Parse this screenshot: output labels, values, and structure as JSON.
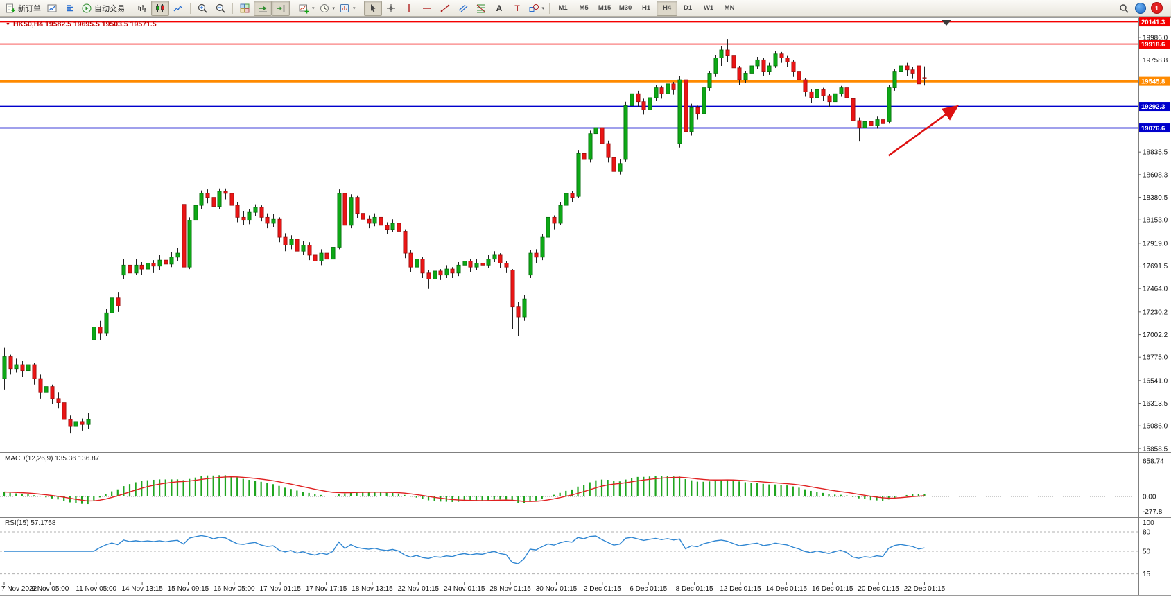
{
  "toolbar": {
    "groups": [
      {
        "name": "trade",
        "items": [
          {
            "name": "new-order",
            "icon": "new-order",
            "label": "新订单"
          },
          {
            "name": "chart-window",
            "icon": "chart-window"
          },
          {
            "name": "market-depth",
            "icon": "market-depth"
          },
          {
            "name": "autotrade",
            "icon": "autotrade",
            "label": "自动交易"
          }
        ]
      },
      {
        "name": "chart-type",
        "items": [
          {
            "name": "bar-chart",
            "icon": "bars"
          },
          {
            "name": "candlestick-chart",
            "icon": "candles",
            "active": true
          },
          {
            "name": "line-chart",
            "icon": "line-chart"
          }
        ]
      },
      {
        "name": "zoom",
        "items": [
          {
            "name": "zoom-in",
            "icon": "zoom-in"
          },
          {
            "name": "zoom-out",
            "icon": "zoom-out"
          }
        ]
      },
      {
        "name": "scroll",
        "items": [
          {
            "name": "tile-windows",
            "icon": "tile-windows"
          },
          {
            "name": "auto-scroll",
            "icon": "auto-scroll",
            "active": true
          },
          {
            "name": "chart-shift",
            "icon": "chart-shift",
            "active": true
          }
        ]
      },
      {
        "name": "objects",
        "items": [
          {
            "name": "new-chart",
            "icon": "new-chart",
            "dropdown": true
          },
          {
            "name": "period",
            "icon": "period",
            "dropdown": true
          },
          {
            "name": "template",
            "icon": "template",
            "dropdown": true
          }
        ]
      },
      {
        "name": "line-studies",
        "items": [
          {
            "name": "cursor",
            "icon": "cursor",
            "active": true
          },
          {
            "name": "crosshair",
            "icon": "crosshair"
          },
          {
            "name": "vertical-line",
            "icon": "vline"
          },
          {
            "name": "horizontal-line",
            "icon": "hline"
          },
          {
            "name": "trendline",
            "icon": "trendline"
          },
          {
            "name": "equidistant-channel",
            "icon": "channel"
          },
          {
            "name": "fibonacci",
            "icon": "fibo"
          },
          {
            "name": "text",
            "icon": "text"
          },
          {
            "name": "text-label",
            "icon": "label"
          },
          {
            "name": "arrows",
            "icon": "shapes",
            "dropdown": true
          }
        ]
      }
    ],
    "timeframes": [
      "M1",
      "M5",
      "M15",
      "M30",
      "H1",
      "H4",
      "D1",
      "W1",
      "MN"
    ],
    "active_timeframe": "H4",
    "right_items": [
      {
        "name": "search",
        "icon": "search"
      },
      {
        "name": "status",
        "icon": "blue-dot"
      },
      {
        "name": "notifications",
        "badge": "1"
      }
    ]
  },
  "chart": {
    "title": "HK50,H4 19582.5 19695.5 19503.5 19571.5",
    "symbol": "HK50",
    "period": "H4",
    "ohlc": {
      "open": "19582.5",
      "high": "19695.5",
      "low": "19503.5",
      "close": "19571.5"
    },
    "price_axis": [
      "19986.0",
      "19758.8",
      "19531.5",
      "19304.3",
      "19077.0",
      "18835.5",
      "18608.3",
      "18380.5",
      "18153.0",
      "17919.0",
      "17691.5",
      "17464.0",
      "17230.2",
      "17002.2",
      "16775.0",
      "16541.0",
      "16313.5",
      "16086.0",
      "15858.5"
    ],
    "time_axis": [
      "7 Nov 2022",
      "9 Nov 05:00",
      "11 Nov 05:00",
      "14 Nov 13:15",
      "15 Nov 09:15",
      "16 Nov 05:00",
      "17 Nov 01:15",
      "17 Nov 17:15",
      "18 Nov 13:15",
      "22 Nov 01:15",
      "24 Nov 01:15",
      "28 Nov 01:15",
      "30 Nov 01:15",
      "2 Dec 01:15",
      "6 Dec 01:15",
      "8 Dec 01:15",
      "12 Dec 01:15",
      "14 Dec 01:15",
      "16 Dec 01:15",
      "20 Dec 01:15",
      "22 Dec 01:15"
    ],
    "levels": [
      {
        "price": 20141.3,
        "label": "20141.3",
        "color": "#f40000",
        "width": 1.6
      },
      {
        "price": 19918.6,
        "label": "19918.6",
        "color": "#f40000",
        "width": 1.6
      },
      {
        "price": 19545.8,
        "label": "19545.8",
        "color": "#ff8a00",
        "width": 3.2
      },
      {
        "price": 19292.3,
        "label": "19292.3",
        "color": "#0000cc",
        "width": 1.8
      },
      {
        "price": 19076.6,
        "label": "19076.6",
        "color": "#0000cc",
        "width": 1.8
      }
    ],
    "arrow": {
      "from_bar": 148,
      "from_price": 18800,
      "to_bar": 159.5,
      "to_price": 19295,
      "color": "#dd1111"
    }
  },
  "chart_data": {
    "type": "candlestick",
    "symbol": "HK50",
    "timeframe": "H4",
    "y_range": [
      15830,
      20180
    ],
    "colors": {
      "bull": "#0da816",
      "bear": "#ea1515",
      "wick": "#222222",
      "macd_hist": "#1fa51f",
      "macd_signal": "#e02020",
      "rsi_line": "#2f86d2"
    },
    "candles": [
      [
        16560,
        16870,
        16450,
        16780
      ],
      [
        16780,
        16800,
        16600,
        16660
      ],
      [
        16660,
        16760,
        16620,
        16700
      ],
      [
        16700,
        16740,
        16580,
        16640
      ],
      [
        16640,
        16760,
        16600,
        16700
      ],
      [
        16700,
        16720,
        16500,
        16560
      ],
      [
        16560,
        16600,
        16360,
        16420
      ],
      [
        16420,
        16540,
        16380,
        16480
      ],
      [
        16480,
        16500,
        16310,
        16360
      ],
      [
        16360,
        16420,
        16260,
        16320
      ],
      [
        16320,
        16340,
        16080,
        16150
      ],
      [
        16150,
        16190,
        16010,
        16080
      ],
      [
        16080,
        16200,
        16050,
        16130
      ],
      [
        16130,
        16160,
        16040,
        16100
      ],
      [
        16100,
        16220,
        16060,
        16150
      ],
      [
        16950,
        17120,
        16900,
        17080
      ],
      [
        17080,
        17140,
        16950,
        17020
      ],
      [
        17020,
        17260,
        16990,
        17220
      ],
      [
        17220,
        17420,
        17180,
        17370
      ],
      [
        17370,
        17430,
        17230,
        17290
      ],
      [
        17600,
        17760,
        17560,
        17700
      ],
      [
        17700,
        17740,
        17560,
        17620
      ],
      [
        17620,
        17760,
        17600,
        17700
      ],
      [
        17700,
        17730,
        17600,
        17660
      ],
      [
        17660,
        17780,
        17620,
        17720
      ],
      [
        17720,
        17750,
        17620,
        17690
      ],
      [
        17690,
        17800,
        17650,
        17750
      ],
      [
        17750,
        17790,
        17650,
        17710
      ],
      [
        17710,
        17830,
        17680,
        17780
      ],
      [
        17780,
        17870,
        17740,
        17820
      ],
      [
        18310,
        18340,
        17600,
        17680
      ],
      [
        17680,
        18180,
        17660,
        18150
      ],
      [
        18150,
        18330,
        18100,
        18300
      ],
      [
        18300,
        18450,
        18260,
        18420
      ],
      [
        18420,
        18460,
        18320,
        18380
      ],
      [
        18380,
        18420,
        18240,
        18290
      ],
      [
        18290,
        18470,
        18260,
        18440
      ],
      [
        18440,
        18470,
        18360,
        18420
      ],
      [
        18420,
        18440,
        18260,
        18300
      ],
      [
        18300,
        18330,
        18130,
        18180
      ],
      [
        18180,
        18240,
        18100,
        18150
      ],
      [
        18150,
        18260,
        18110,
        18230
      ],
      [
        18230,
        18310,
        18190,
        18280
      ],
      [
        18280,
        18300,
        18140,
        18180
      ],
      [
        18180,
        18220,
        18070,
        18120
      ],
      [
        18120,
        18210,
        18080,
        18160
      ],
      [
        18160,
        18180,
        17930,
        17980
      ],
      [
        17980,
        18020,
        17840,
        17900
      ],
      [
        17900,
        18000,
        17860,
        17960
      ],
      [
        17960,
        17980,
        17790,
        17840
      ],
      [
        17840,
        17940,
        17800,
        17900
      ],
      [
        17900,
        17930,
        17750,
        17800
      ],
      [
        17800,
        17830,
        17690,
        17740
      ],
      [
        17740,
        17860,
        17700,
        17820
      ],
      [
        17820,
        17850,
        17710,
        17760
      ],
      [
        17760,
        17910,
        17730,
        17880
      ],
      [
        17880,
        18460,
        17860,
        18420
      ],
      [
        18420,
        18470,
        18040,
        18100
      ],
      [
        18100,
        18410,
        18070,
        18380
      ],
      [
        18380,
        18400,
        18170,
        18220
      ],
      [
        18220,
        18290,
        18110,
        18160
      ],
      [
        18160,
        18200,
        18070,
        18120
      ],
      [
        18120,
        18220,
        18090,
        18180
      ],
      [
        18180,
        18200,
        18050,
        18100
      ],
      [
        18100,
        18130,
        18010,
        18060
      ],
      [
        18060,
        18160,
        18030,
        18120
      ],
      [
        18120,
        18140,
        17990,
        18040
      ],
      [
        18040,
        18060,
        17770,
        17820
      ],
      [
        17820,
        17850,
        17630,
        17680
      ],
      [
        17680,
        17790,
        17650,
        17760
      ],
      [
        17760,
        17780,
        17570,
        17620
      ],
      [
        17620,
        17650,
        17460,
        17560
      ],
      [
        17560,
        17680,
        17530,
        17640
      ],
      [
        17640,
        17660,
        17550,
        17600
      ],
      [
        17600,
        17700,
        17570,
        17660
      ],
      [
        17660,
        17680,
        17570,
        17620
      ],
      [
        17620,
        17730,
        17590,
        17700
      ],
      [
        17700,
        17780,
        17670,
        17740
      ],
      [
        17740,
        17760,
        17630,
        17680
      ],
      [
        17680,
        17760,
        17650,
        17720
      ],
      [
        17720,
        17740,
        17640,
        17700
      ],
      [
        17700,
        17800,
        17670,
        17760
      ],
      [
        17760,
        17840,
        17730,
        17800
      ],
      [
        17800,
        17820,
        17670,
        17720
      ],
      [
        17720,
        17740,
        17620,
        17680
      ],
      [
        17650,
        17660,
        17060,
        17280
      ],
      [
        17280,
        17330,
        16990,
        17180
      ],
      [
        17180,
        17400,
        17140,
        17360
      ],
      [
        17600,
        17850,
        17570,
        17820
      ],
      [
        17820,
        17860,
        17720,
        17780
      ],
      [
        17780,
        18010,
        17750,
        17980
      ],
      [
        17980,
        18210,
        17950,
        18180
      ],
      [
        18180,
        18200,
        18060,
        18120
      ],
      [
        18120,
        18330,
        18100,
        18300
      ],
      [
        18300,
        18450,
        18270,
        18420
      ],
      [
        18420,
        18440,
        18330,
        18380
      ],
      [
        18390,
        18850,
        18370,
        18820
      ],
      [
        18820,
        18860,
        18700,
        18760
      ],
      [
        18760,
        19050,
        18730,
        19020
      ],
      [
        19020,
        19120,
        18960,
        19080
      ],
      [
        19080,
        19100,
        18870,
        18920
      ],
      [
        18920,
        18950,
        18730,
        18780
      ],
      [
        18780,
        18810,
        18590,
        18640
      ],
      [
        18640,
        18760,
        18610,
        18720
      ],
      [
        18760,
        19340,
        18740,
        19300
      ],
      [
        19300,
        19520,
        19270,
        19420
      ],
      [
        19420,
        19450,
        19290,
        19340
      ],
      [
        19340,
        19370,
        19210,
        19260
      ],
      [
        19260,
        19410,
        19230,
        19380
      ],
      [
        19380,
        19510,
        19350,
        19480
      ],
      [
        19480,
        19500,
        19370,
        19420
      ],
      [
        19420,
        19550,
        19390,
        19520
      ],
      [
        19520,
        19540,
        19410,
        19460
      ],
      [
        18920,
        19600,
        18880,
        19560
      ],
      [
        19560,
        19620,
        18960,
        19040
      ],
      [
        19040,
        19320,
        19000,
        19280
      ],
      [
        19280,
        19300,
        19160,
        19220
      ],
      [
        19220,
        19510,
        19190,
        19480
      ],
      [
        19480,
        19650,
        19450,
        19620
      ],
      [
        19620,
        19810,
        19590,
        19780
      ],
      [
        19780,
        19900,
        19700,
        19860
      ],
      [
        19860,
        19970,
        19740,
        19800
      ],
      [
        19800,
        19830,
        19640,
        19680
      ],
      [
        19680,
        19700,
        19510,
        19560
      ],
      [
        19560,
        19650,
        19530,
        19620
      ],
      [
        19620,
        19730,
        19590,
        19700
      ],
      [
        19700,
        19790,
        19670,
        19760
      ],
      [
        19760,
        19780,
        19600,
        19640
      ],
      [
        19640,
        19730,
        19610,
        19700
      ],
      [
        19700,
        19850,
        19680,
        19820
      ],
      [
        19820,
        19840,
        19730,
        19780
      ],
      [
        19780,
        19800,
        19690,
        19740
      ],
      [
        19740,
        19760,
        19590,
        19640
      ],
      [
        19640,
        19660,
        19510,
        19560
      ],
      [
        19560,
        19580,
        19390,
        19440
      ],
      [
        19440,
        19470,
        19330,
        19380
      ],
      [
        19380,
        19490,
        19350,
        19460
      ],
      [
        19460,
        19480,
        19350,
        19400
      ],
      [
        19400,
        19420,
        19290,
        19340
      ],
      [
        19340,
        19450,
        19310,
        19420
      ],
      [
        19420,
        19500,
        19390,
        19480
      ],
      [
        19480,
        19500,
        19340,
        19380
      ],
      [
        19370,
        19390,
        19100,
        19150
      ],
      [
        19150,
        19180,
        18940,
        19080
      ],
      [
        19080,
        19170,
        19050,
        19140
      ],
      [
        19140,
        19160,
        19040,
        19100
      ],
      [
        19100,
        19190,
        19070,
        19160
      ],
      [
        19160,
        19180,
        19060,
        19120
      ],
      [
        19140,
        19510,
        19120,
        19480
      ],
      [
        19480,
        19670,
        19450,
        19640
      ],
      [
        19640,
        19760,
        19610,
        19700
      ],
      [
        19700,
        19730,
        19600,
        19660
      ],
      [
        19660,
        19690,
        19570,
        19620
      ],
      [
        19700,
        19720,
        19300,
        19520
      ],
      [
        19582.5,
        19695.5,
        19503.5,
        19571.5
      ]
    ],
    "indicators": [
      {
        "name": "MACD",
        "params": "12,26,9",
        "label": "MACD(12,26,9) 135.36 136.87",
        "current": [
          "135.36",
          "136.87"
        ],
        "axis": [
          "658.74",
          "0.00",
          "-277.8"
        ]
      },
      {
        "name": "RSI",
        "params": "15",
        "label": "RSI(15) 57.1758",
        "current": [
          "57.1758"
        ],
        "axis": [
          "100",
          "80",
          "50",
          "15"
        ],
        "levels": [
          80,
          50,
          15
        ]
      }
    ]
  }
}
